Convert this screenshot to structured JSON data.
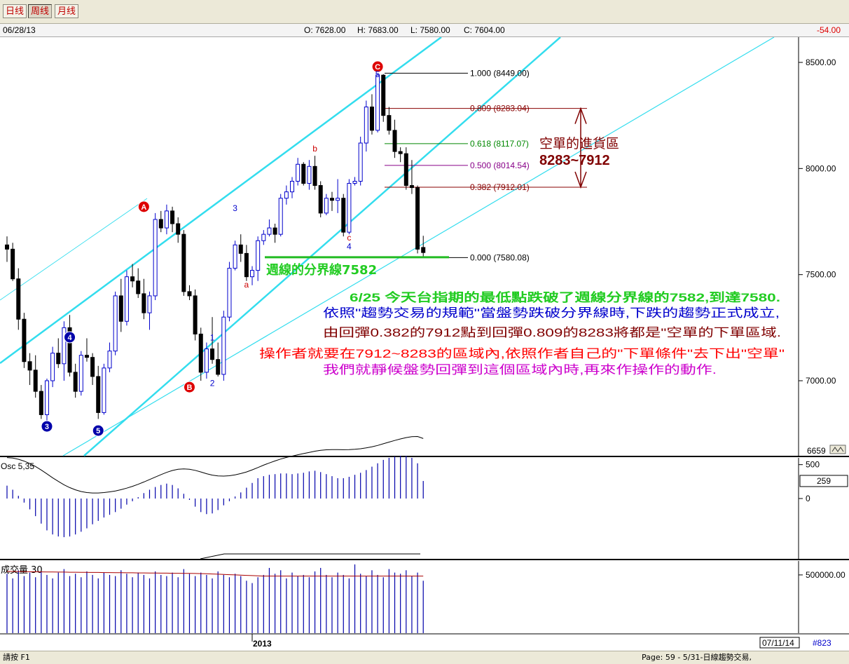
{
  "toolbar": {
    "tabs": [
      "日线",
      "周线",
      "月线"
    ],
    "active_tab": "周线"
  },
  "header": {
    "date": "06/28/13",
    "open": "O: 7628.00",
    "high": "H: 7683.00",
    "low": "L: 7580.00",
    "close": "C: 7604.00",
    "change": "-54.00"
  },
  "colors": {
    "up": "#0000cc",
    "down": "#000000",
    "channel": "#33ddee",
    "fib_support": "#008800",
    "fib_mid": "#880088",
    "fib_res": "#880000",
    "note_green": "#22cc22",
    "note_blue": "#0000cc",
    "note_maroon": "#800000",
    "note_red": "#ff0000",
    "note_magenta": "#cc00cc"
  },
  "chart_data": [
    {
      "type": "candlestick",
      "title": "",
      "x_label": "2013",
      "price_axis": {
        "ticks": [
          "8500.00",
          "8000.00",
          "7500.00",
          "7000.00"
        ],
        "tick_values": [
          8500,
          8000,
          7500,
          7000
        ],
        "bottom_label": "6659",
        "ylim": [
          6659,
          8610
        ]
      },
      "candles": [
        [
          7640,
          7680,
          7560,
          7620
        ],
        [
          7620,
          7650,
          7470,
          7480
        ],
        [
          7480,
          7530,
          7240,
          7290
        ],
        [
          7290,
          7320,
          7060,
          7090
        ],
        [
          7090,
          7130,
          6980,
          7050
        ],
        [
          7050,
          7120,
          6920,
          6950
        ],
        [
          6950,
          6980,
          6820,
          6840
        ],
        [
          6840,
          7010,
          6810,
          7000
        ],
        [
          7000,
          7160,
          6970,
          7130
        ],
        [
          7130,
          7200,
          7060,
          7080
        ],
        [
          7080,
          7280,
          7000,
          7250
        ],
        [
          7250,
          7310,
          7020,
          7040
        ],
        [
          7040,
          7080,
          6920,
          6950
        ],
        [
          6950,
          7140,
          6930,
          7120
        ],
        [
          7120,
          7200,
          7090,
          7110
        ],
        [
          7110,
          7130,
          6980,
          7020
        ],
        [
          7020,
          7070,
          6820,
          6850
        ],
        [
          6850,
          7080,
          6840,
          7060
        ],
        [
          7060,
          7180,
          7040,
          7140
        ],
        [
          7140,
          7420,
          7120,
          7400
        ],
        [
          7400,
          7480,
          7230,
          7280
        ],
        [
          7280,
          7520,
          7260,
          7490
        ],
        [
          7490,
          7550,
          7440,
          7470
        ],
        [
          7470,
          7530,
          7390,
          7410
        ],
        [
          7410,
          7480,
          7290,
          7320
        ],
        [
          7320,
          7420,
          7240,
          7400
        ],
        [
          7400,
          7790,
          7380,
          7760
        ],
        [
          7760,
          7800,
          7700,
          7720
        ],
        [
          7720,
          7830,
          7690,
          7800
        ],
        [
          7800,
          7820,
          7700,
          7740
        ],
        [
          7740,
          7770,
          7650,
          7690
        ],
        [
          7690,
          7710,
          7400,
          7420
        ],
        [
          7420,
          7450,
          7380,
          7400
        ],
        [
          7400,
          7430,
          7190,
          7220
        ],
        [
          7220,
          7250,
          7000,
          7040
        ],
        [
          7040,
          7180,
          7010,
          7150
        ],
        [
          7150,
          7300,
          7080,
          7100
        ],
        [
          7100,
          7180,
          7020,
          7030
        ],
        [
          7030,
          7330,
          7000,
          7300
        ],
        [
          7300,
          7560,
          7280,
          7530
        ],
        [
          7530,
          7660,
          7520,
          7640
        ],
        [
          7640,
          7690,
          7560,
          7600
        ],
        [
          7600,
          7640,
          7470,
          7490
        ],
        [
          7490,
          7540,
          7450,
          7520
        ],
        [
          7520,
          7680,
          7470,
          7660
        ],
        [
          7660,
          7710,
          7640,
          7690
        ],
        [
          7690,
          7760,
          7680,
          7720
        ],
        [
          7720,
          7740,
          7650,
          7690
        ],
        [
          7690,
          7880,
          7680,
          7860
        ],
        [
          7860,
          7920,
          7830,
          7890
        ],
        [
          7890,
          7960,
          7860,
          7940
        ],
        [
          7940,
          8050,
          7920,
          8020
        ],
        [
          8020,
          8030,
          7920,
          7930
        ],
        [
          7930,
          8040,
          7900,
          8010
        ],
        [
          8010,
          8060,
          7900,
          7920
        ],
        [
          7920,
          7940,
          7770,
          7790
        ],
        [
          7790,
          7880,
          7780,
          7860
        ],
        [
          7860,
          7890,
          7800,
          7850
        ],
        [
          7850,
          7950,
          7790,
          7860
        ],
        [
          7860,
          7880,
          7680,
          7700
        ],
        [
          7700,
          7950,
          7690,
          7930
        ],
        [
          7930,
          7960,
          7920,
          7940
        ],
        [
          7940,
          8150,
          7920,
          8120
        ],
        [
          8120,
          8320,
          8080,
          8290
        ],
        [
          8290,
          8350,
          8160,
          8180
        ],
        [
          8180,
          8449,
          8170,
          8440
        ],
        [
          8440,
          8445,
          8220,
          8250
        ],
        [
          8250,
          8290,
          8160,
          8180
        ],
        [
          8180,
          8230,
          8050,
          8080
        ],
        [
          8080,
          8100,
          8030,
          8070
        ],
        [
          8070,
          8100,
          7900,
          7920
        ],
        [
          7920,
          8040,
          7880,
          7910
        ],
        [
          7910,
          7920,
          7600,
          7620
        ],
        [
          7628,
          7683,
          7580,
          7604
        ]
      ],
      "fibonacci": [
        {
          "ratio": "1.000",
          "value": 8449.0,
          "label": "1.000 (8449.00)"
        },
        {
          "ratio": "0.809",
          "value": 8283.04,
          "label": "0.809 (8283.04)"
        },
        {
          "ratio": "0.618",
          "value": 8117.07,
          "label": "0.618 (8117.07)"
        },
        {
          "ratio": "0.500",
          "value": 8014.54,
          "label": "0.500 (8014.54)"
        },
        {
          "ratio": "0.382",
          "value": 7912.01,
          "label": "0.382 (7912.01)"
        },
        {
          "ratio": "0.000",
          "value": 7580.08,
          "label": "0.000 (7580.08)"
        }
      ],
      "wave_labels": [
        {
          "text": "A",
          "style": "circle-red",
          "bar": 24,
          "price": 7820
        },
        {
          "text": "B",
          "style": "circle-red",
          "bar": 32,
          "price": 6970
        },
        {
          "text": "C",
          "style": "circle-red",
          "bar": 65,
          "price": 8480
        },
        {
          "text": "3",
          "style": "circle-blue",
          "bar": 7,
          "price": 6785
        },
        {
          "text": "4",
          "style": "circle-blue",
          "bar": 11,
          "price": 7205
        },
        {
          "text": "5",
          "style": "circle-blue",
          "bar": 16,
          "price": 6765
        },
        {
          "text": "1",
          "style": "text-blue",
          "bar": 36,
          "price": 7190
        },
        {
          "text": "2",
          "style": "text-blue",
          "bar": 36,
          "price": 6975
        },
        {
          "text": "3",
          "style": "text-blue",
          "bar": 40,
          "price": 7800
        },
        {
          "text": "a",
          "style": "text-red",
          "bar": 42,
          "price": 7440
        },
        {
          "text": "b",
          "style": "text-red",
          "bar": 54,
          "price": 8080
        },
        {
          "text": "c",
          "style": "text-red",
          "bar": 60,
          "price": 7660
        },
        {
          "text": "4",
          "style": "text-blue",
          "bar": 60,
          "price": 7620
        },
        {
          "text": "5",
          "style": "text-blue",
          "bar": 65,
          "price": 8430
        }
      ],
      "support_line": {
        "value": 7582,
        "label": "週線的分界線7582"
      },
      "entry_zone": {
        "title": "空單的進貨區",
        "range": "8283~7912",
        "upper": 8283,
        "lower": 7912
      },
      "annotations": [
        "6/25 今天台指期的最低點跌破了週線分界線的7582,到達7580.",
        "依照\"趨勢交易的規範\"當盤勢跌破分界線時,下跌的趨勢正式成立,",
        "由回彈0.382的7912點到回彈0.809的8283將都是\"空單的下單區域.",
        "操作者就要在7912~8283的區域內,依照作者自己的\"下單條件\"去下出\"空單\"",
        "我們就靜候盤勢回彈到這個區域內時,再來作操作的動作."
      ]
    },
    {
      "type": "bar",
      "title": "Osc 5,35",
      "axis_ticks": [
        "500",
        "0"
      ],
      "tick_values": [
        500,
        0
      ],
      "current_value": "259",
      "ylim": [
        -900,
        600
      ],
      "values": [
        190,
        130,
        40,
        -60,
        -160,
        -260,
        -370,
        -470,
        -530,
        -560,
        -570,
        -560,
        -530,
        -490,
        -440,
        -380,
        -330,
        -280,
        -240,
        -200,
        -150,
        -90,
        -40,
        20,
        80,
        130,
        170,
        200,
        220,
        200,
        150,
        70,
        -20,
        -120,
        -200,
        -230,
        -220,
        -170,
        -100,
        -40,
        30,
        90,
        160,
        230,
        300,
        330,
        350,
        360,
        370,
        370,
        360,
        370,
        380,
        400,
        410,
        390,
        360,
        330,
        300,
        300,
        320,
        350,
        380,
        420,
        470,
        520,
        570,
        600,
        620,
        630,
        630,
        600,
        520,
        259
      ]
    },
    {
      "type": "bar",
      "title": "成交量 30",
      "axis_ticks": [
        "500000.00"
      ],
      "tick_values": [
        500000
      ],
      "ylim": [
        0,
        620000
      ],
      "values": [
        510000,
        470000,
        540000,
        490000,
        520000,
        480000,
        530000,
        500000,
        470000,
        520000,
        550000,
        490000,
        510000,
        480000,
        530000,
        500000,
        470000,
        520000,
        500000,
        490000,
        540000,
        510000,
        480000,
        520000,
        500000,
        470000,
        530000,
        500000,
        490000,
        520000,
        480000,
        550000,
        510000,
        490000,
        520000,
        500000,
        470000,
        530000,
        500000,
        480000,
        510000,
        490000,
        450000,
        430000,
        480000,
        500000,
        560000,
        510000,
        540000,
        470000,
        520000,
        490000,
        500000,
        480000,
        530000,
        560000,
        500000,
        480000,
        520000,
        500000,
        470000,
        590000,
        510000,
        490000,
        540000,
        500000,
        480000,
        550000,
        520000,
        510000,
        540000,
        490000,
        520000,
        450000
      ],
      "average": [
        530000,
        530000,
        529000,
        528000,
        527000,
        527000,
        526000,
        525000,
        525000,
        524000,
        524000,
        523000,
        523000,
        522000,
        522000,
        521000,
        521000,
        520000,
        520000,
        519000,
        519000,
        518000,
        518000,
        517000,
        517000,
        516000,
        516000,
        515000,
        515000,
        514000,
        514000,
        513000,
        513000,
        512000,
        511000,
        510000,
        508000,
        506000,
        504000,
        502000,
        500000,
        498000,
        496000,
        494000,
        492000,
        490000,
        490000,
        490000,
        490000,
        490000,
        490000,
        490000,
        490000,
        490000,
        490000,
        490000,
        490000,
        490000,
        490000,
        490000,
        490000,
        490000,
        490000,
        490000,
        490000,
        490000,
        490000,
        490000,
        490000,
        490000,
        490000,
        490000,
        490000,
        490000
      ]
    }
  ],
  "footer": {
    "end_date": "07/11/14",
    "record": "#823"
  },
  "status": {
    "left": "請按 F1",
    "right": "Page: 59 - 5/31-日線趨勢交易,"
  }
}
